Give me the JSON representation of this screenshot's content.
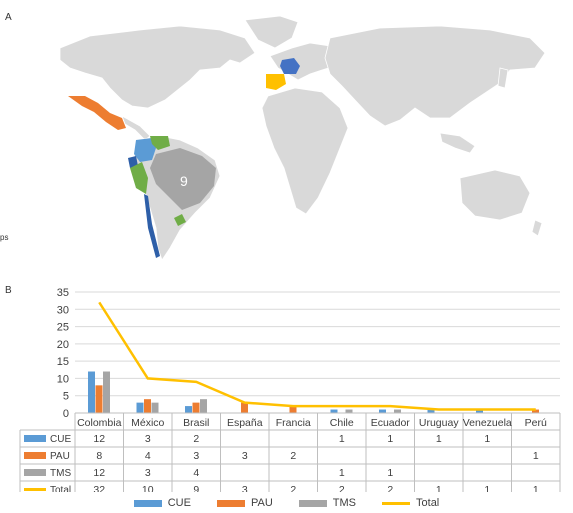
{
  "panels": {
    "map_label": "A",
    "chart_label": "B",
    "side_fragment": "ps"
  },
  "map": {
    "brazil_count": "9",
    "colors": {
      "land": "#d9d9d9",
      "cue": "#5b9bd5",
      "pau": "#ed7d31",
      "tms": "#a5a5a5",
      "france": "#4472c4",
      "spain": "#ffc000",
      "green": "#70ad47",
      "dark_blue": "#2e5fa8",
      "brazil": "#a5a5a5"
    }
  },
  "chart_data": {
    "type": "bar",
    "categories": [
      "Colombia",
      "México",
      "Brasil",
      "España",
      "Francia",
      "Chile",
      "Ecuador",
      "Uruguay",
      "Venezuela",
      "Perú"
    ],
    "ylim": [
      0,
      35
    ],
    "yticks": [
      "35",
      "30",
      "25",
      "20",
      "15",
      "10",
      "5",
      "0"
    ],
    "series": [
      {
        "name": "CUE",
        "color": "#5b9bd5",
        "kind": "bar",
        "values": [
          12,
          3,
          2,
          0,
          0,
          1,
          1,
          1,
          1,
          0
        ],
        "labels": [
          "12",
          "3",
          "2",
          "",
          "",
          "1",
          "1",
          "1",
          "1",
          ""
        ]
      },
      {
        "name": "PAU",
        "color": "#ed7d31",
        "kind": "bar",
        "values": [
          8,
          4,
          3,
          3,
          2,
          0,
          0,
          0,
          0,
          1
        ],
        "labels": [
          "8",
          "4",
          "3",
          "3",
          "2",
          "",
          "",
          "",
          "",
          "1"
        ]
      },
      {
        "name": "TMS",
        "color": "#a5a5a5",
        "kind": "bar",
        "values": [
          12,
          3,
          4,
          0,
          0,
          1,
          1,
          0,
          0,
          0
        ],
        "labels": [
          "12",
          "3",
          "4",
          "",
          "",
          "1",
          "1",
          "",
          "",
          ""
        ]
      },
      {
        "name": "Total",
        "color": "#ffc000",
        "kind": "line",
        "values": [
          32,
          10,
          9,
          3,
          2,
          2,
          2,
          1,
          1,
          1
        ],
        "labels": [
          "32",
          "10",
          "9",
          "3",
          "2",
          "2",
          "2",
          "1",
          "1",
          "1"
        ]
      }
    ],
    "legend": [
      "CUE",
      "PAU",
      "TMS",
      "Total"
    ],
    "grid": true
  }
}
